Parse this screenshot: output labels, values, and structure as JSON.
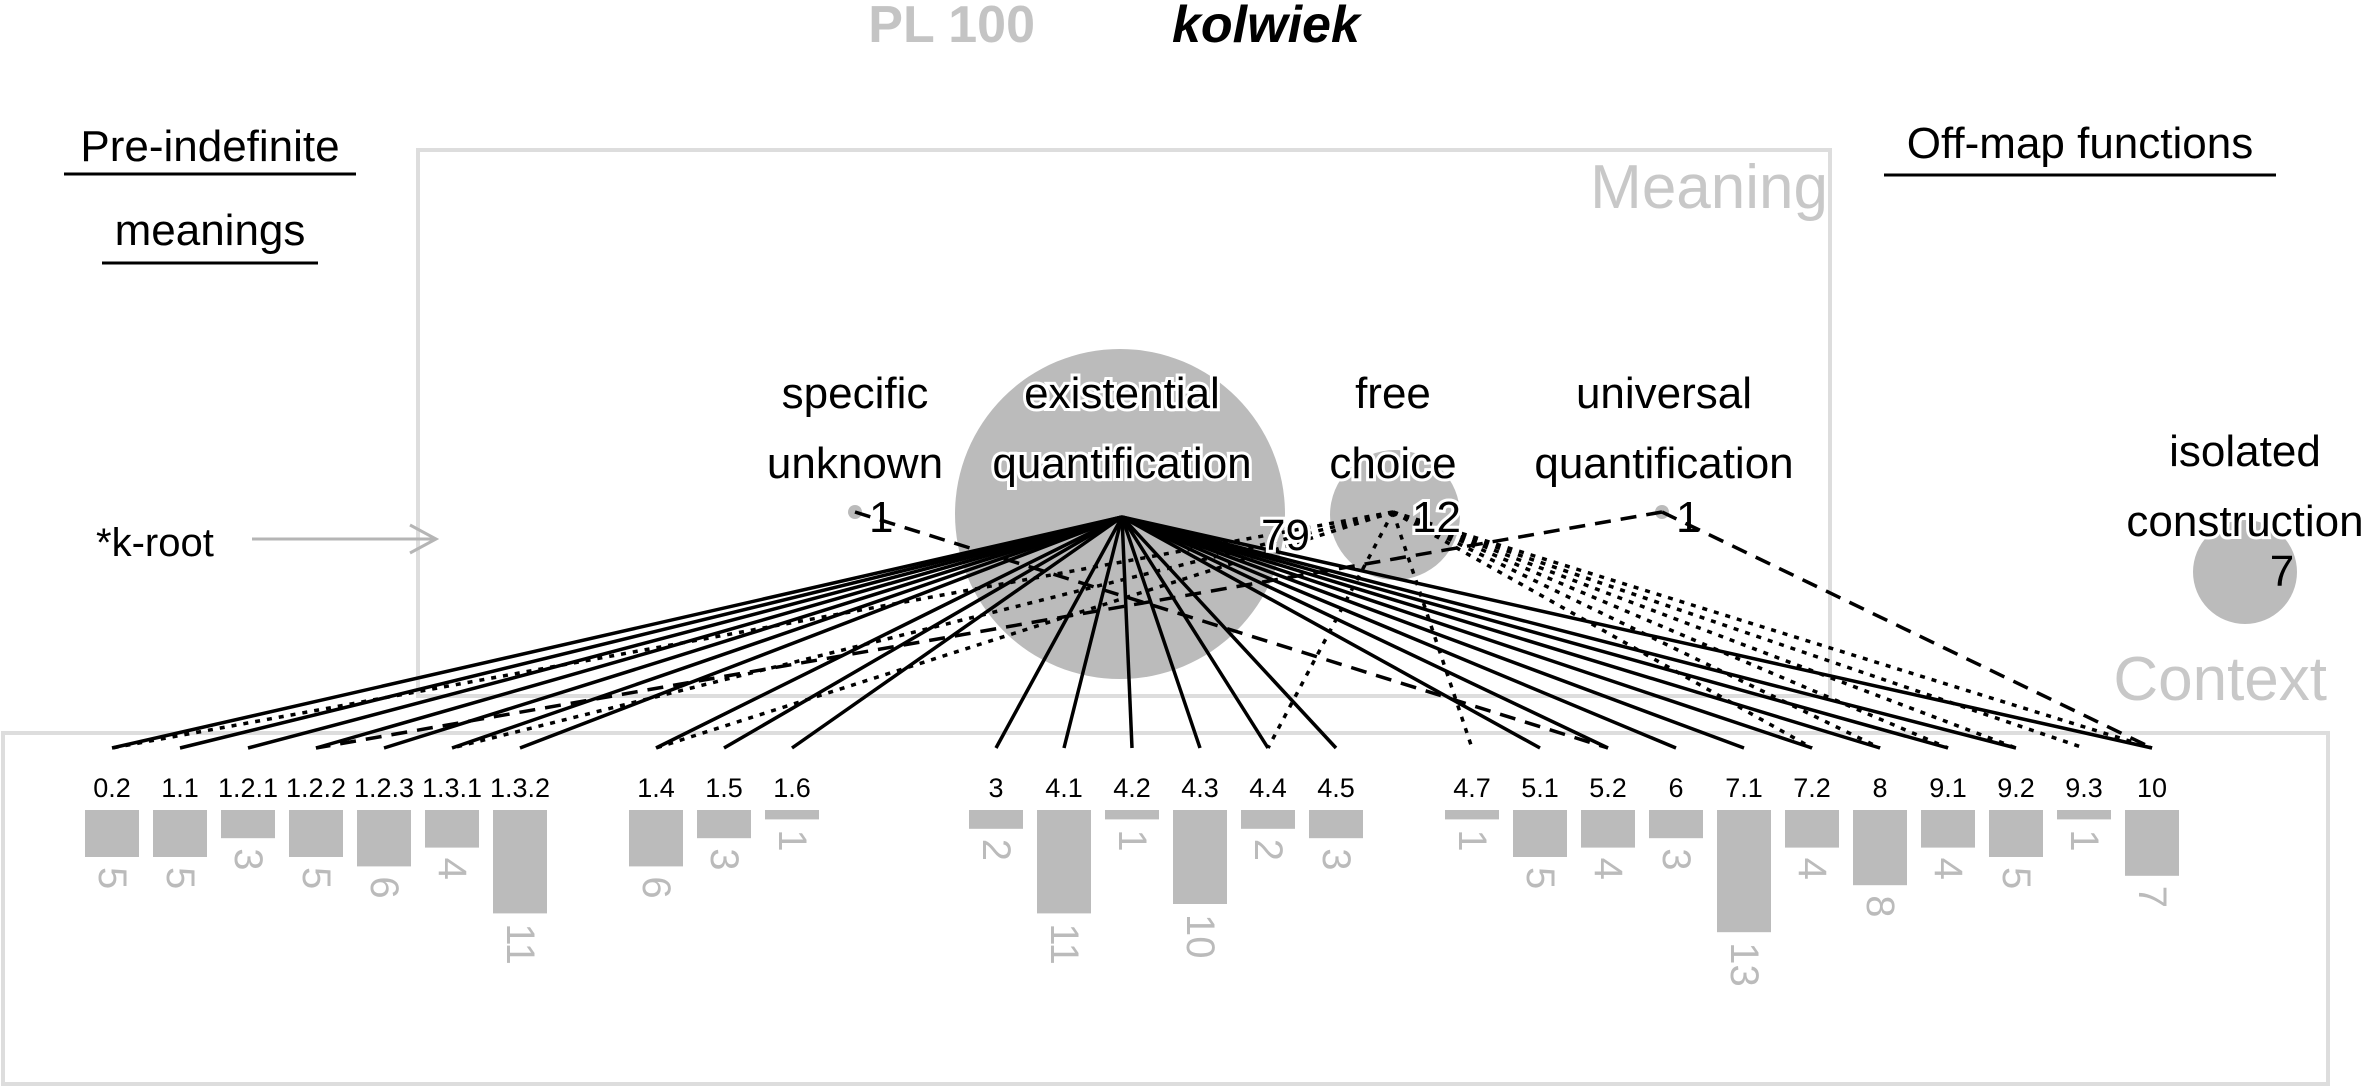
{
  "title": {
    "code": "PL 100",
    "word": "kolwiek"
  },
  "labels": {
    "pre_indefinite_line1": "Pre-indefinite",
    "pre_indefinite_line2": "meanings",
    "off_map": "Off-map functions",
    "meaning_box": "Meaning",
    "context_box": "Context",
    "k_root": "*k-root"
  },
  "meanings": [
    {
      "id": "specific_unknown",
      "line1": "specific",
      "line2": "unknown",
      "count": 1
    },
    {
      "id": "existential_quantification",
      "line1": "existential",
      "line2": "quantification",
      "count": 79
    },
    {
      "id": "free_choice",
      "line1": "free",
      "line2": "choice",
      "count": 12
    },
    {
      "id": "universal_quantification",
      "line1": "universal",
      "line2": "quantification",
      "count": 1
    },
    {
      "id": "isolated_construction",
      "line1": "isolated",
      "line2": "construction",
      "count": 7
    }
  ],
  "chart_data": {
    "type": "bar",
    "categories": [
      "0.2",
      "1.1",
      "1.2.1",
      "1.2.2",
      "1.2.3",
      "1.3.1",
      "1.3.2",
      "1.4",
      "1.5",
      "1.6",
      "3",
      "4.1",
      "4.2",
      "4.3",
      "4.4",
      "4.5",
      "4.7",
      "5.1",
      "5.2",
      "6",
      "7.1",
      "7.2",
      "8",
      "9.1",
      "9.2",
      "9.3",
      "10"
    ],
    "values": [
      5,
      5,
      3,
      5,
      6,
      4,
      11,
      6,
      3,
      1,
      2,
      11,
      1,
      10,
      2,
      3,
      1,
      5,
      4,
      3,
      13,
      4,
      8,
      4,
      5,
      1,
      7
    ]
  },
  "links": [
    {
      "from": "existential_quantification",
      "to": "0.2",
      "style": "solid"
    },
    {
      "from": "existential_quantification",
      "to": "1.1",
      "style": "solid"
    },
    {
      "from": "existential_quantification",
      "to": "1.2.1",
      "style": "solid"
    },
    {
      "from": "existential_quantification",
      "to": "1.2.2",
      "style": "solid"
    },
    {
      "from": "existential_quantification",
      "to": "1.2.3",
      "style": "solid"
    },
    {
      "from": "existential_quantification",
      "to": "1.3.1",
      "style": "solid"
    },
    {
      "from": "existential_quantification",
      "to": "1.3.2",
      "style": "solid"
    },
    {
      "from": "existential_quantification",
      "to": "1.4",
      "style": "solid"
    },
    {
      "from": "existential_quantification",
      "to": "1.5",
      "style": "solid"
    },
    {
      "from": "existential_quantification",
      "to": "1.6",
      "style": "solid"
    },
    {
      "from": "existential_quantification",
      "to": "3",
      "style": "solid"
    },
    {
      "from": "existential_quantification",
      "to": "4.1",
      "style": "solid"
    },
    {
      "from": "existential_quantification",
      "to": "4.2",
      "style": "solid"
    },
    {
      "from": "existential_quantification",
      "to": "4.3",
      "style": "solid"
    },
    {
      "from": "existential_quantification",
      "to": "4.4",
      "style": "solid"
    },
    {
      "from": "existential_quantification",
      "to": "4.5",
      "style": "solid"
    },
    {
      "from": "existential_quantification",
      "to": "5.1",
      "style": "solid"
    },
    {
      "from": "existential_quantification",
      "to": "5.2",
      "style": "solid"
    },
    {
      "from": "existential_quantification",
      "to": "6",
      "style": "solid"
    },
    {
      "from": "existential_quantification",
      "to": "7.1",
      "style": "solid"
    },
    {
      "from": "existential_quantification",
      "to": "7.2",
      "style": "solid"
    },
    {
      "from": "existential_quantification",
      "to": "8",
      "style": "solid"
    },
    {
      "from": "existential_quantification",
      "to": "9.1",
      "style": "solid"
    },
    {
      "from": "existential_quantification",
      "to": "9.2",
      "style": "solid"
    },
    {
      "from": "existential_quantification",
      "to": "10",
      "style": "solid"
    },
    {
      "from": "specific_unknown",
      "to": "5.2",
      "style": "dashed"
    },
    {
      "from": "universal_quantification",
      "to": "1.2.2",
      "style": "dashed"
    },
    {
      "from": "universal_quantification",
      "to": "10",
      "style": "dashed"
    },
    {
      "from": "free_choice",
      "to": "0.2",
      "style": "dotted"
    },
    {
      "from": "free_choice",
      "to": "1.3.1",
      "style": "dotted"
    },
    {
      "from": "free_choice",
      "to": "1.4",
      "style": "dotted"
    },
    {
      "from": "free_choice",
      "to": "4.4",
      "style": "dotted"
    },
    {
      "from": "free_choice",
      "to": "4.7",
      "style": "dotted"
    },
    {
      "from": "free_choice",
      "to": "7.2",
      "style": "dotted"
    },
    {
      "from": "free_choice",
      "to": "8",
      "style": "dotted"
    },
    {
      "from": "free_choice",
      "to": "9.1",
      "style": "dotted"
    },
    {
      "from": "free_choice",
      "to": "9.2",
      "style": "dotted"
    },
    {
      "from": "free_choice",
      "to": "9.3",
      "style": "dotted"
    },
    {
      "from": "free_choice",
      "to": "10",
      "style": "dotted"
    }
  ],
  "colors": {
    "grey": "#bbbbbb",
    "light_grey": "#dddddd",
    "black": "#000000"
  }
}
